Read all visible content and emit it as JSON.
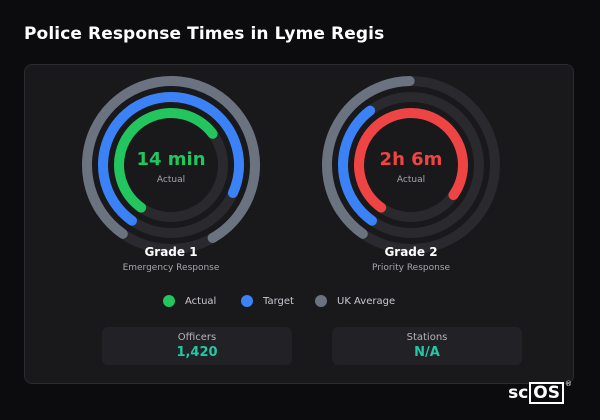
{
  "page": {
    "title": "Police Response Times in Lyme Regis"
  },
  "gauges": [
    {
      "value": "14 min",
      "value_color": "#22c55e",
      "sub": "Actual",
      "title": "Grade 1",
      "subtitle": "Emergency Response",
      "actual_color": "#22c55e",
      "actual_fraction": 0.55,
      "target_fraction": 0.72,
      "average_fraction": 0.82
    },
    {
      "value": "2h 6m",
      "value_color": "#ef4444",
      "sub": "Actual",
      "title": "Grade 2",
      "subtitle": "Priority Response",
      "actual_color": "#ef4444",
      "actual_fraction": 0.75,
      "target_fraction": 0.3,
      "average_fraction": 0.4
    }
  ],
  "legend": [
    {
      "label": "Actual",
      "color": "#22c55e"
    },
    {
      "label": "Target",
      "color": "#3b82f6"
    },
    {
      "label": "UK Average",
      "color": "#6b7280"
    }
  ],
  "stats": [
    {
      "label": "Officers",
      "value": "1,420"
    },
    {
      "label": "Stations",
      "value": "N/A"
    }
  ],
  "brand": {
    "prefix": "sc",
    "boxed": "OS",
    "mark": "®"
  }
}
